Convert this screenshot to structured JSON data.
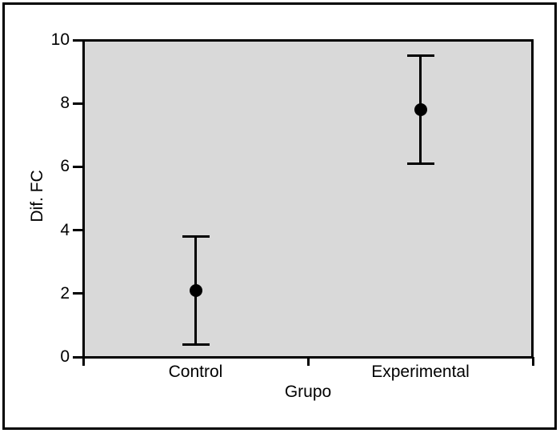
{
  "figure": {
    "background": "#ffffff",
    "border_color": "#000000",
    "plot_background": "#d9d9d9",
    "axis_color": "#000000",
    "text_color": "#000000",
    "marker_color": "#000000"
  },
  "chart_data": {
    "type": "errorbar",
    "title": "",
    "xlabel": "Grupo",
    "ylabel": "Dif. FC",
    "categories": [
      "Control",
      "Experimental"
    ],
    "series": [
      {
        "name": "Mean with error bars",
        "points": [
          {
            "category": "Control",
            "mean": 2.1,
            "lower": 0.4,
            "upper": 3.8
          },
          {
            "category": "Experimental",
            "mean": 7.8,
            "lower": 6.1,
            "upper": 9.5
          }
        ]
      }
    ],
    "ylim": [
      0,
      10
    ],
    "yticks": [
      0,
      2,
      4,
      6,
      8,
      10
    ],
    "ytick_labels": [
      "0",
      "2",
      "4",
      "6",
      "8",
      "10"
    ],
    "grid": false,
    "legend": false,
    "marker": "filled-circle"
  }
}
